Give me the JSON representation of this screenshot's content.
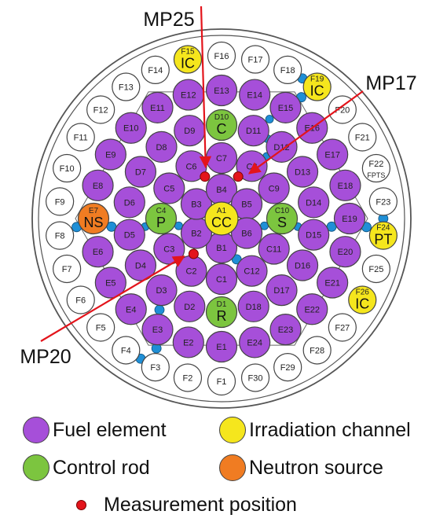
{
  "colors": {
    "fuel": "#a64fd9",
    "control": "#7cc53f",
    "irradiation": "#f5e61d",
    "neutron": "#f07c22",
    "empty": "#ffffff",
    "detector": "#1f8fd6",
    "measurement": "#e3141b",
    "arrow": "#e3141b"
  },
  "labels": {
    "fppts": "FPTS"
  },
  "arrows": [
    {
      "label": "MP25"
    },
    {
      "label": "MP17"
    },
    {
      "label": "MP20"
    }
  ],
  "rings": {
    "A": {
      "names": [
        "A1"
      ],
      "types": [
        "irradiation"
      ],
      "tags": [
        "CC"
      ]
    },
    "B": {
      "names": [
        "B1",
        "B2",
        "B3",
        "B4",
        "B5",
        "B6"
      ],
      "types": [
        "fuel",
        "fuel",
        "fuel",
        "fuel",
        "fuel",
        "fuel"
      ],
      "tags": [
        "",
        "",
        "",
        "",
        "",
        ""
      ]
    },
    "C": {
      "names": [
        "C1",
        "C2",
        "C3",
        "C4",
        "C5",
        "C6",
        "C7",
        "C8",
        "C9",
        "C10",
        "C11",
        "C12"
      ],
      "types": [
        "fuel",
        "fuel",
        "fuel",
        "control",
        "fuel",
        "fuel",
        "fuel",
        "fuel",
        "fuel",
        "control",
        "fuel",
        "fuel"
      ],
      "tags": [
        "",
        "",
        "",
        "P",
        "",
        "",
        "",
        "",
        "",
        "S",
        "",
        ""
      ]
    },
    "D": {
      "names": [
        "D1",
        "D2",
        "D3",
        "D4",
        "D5",
        "D6",
        "D7",
        "D8",
        "D9",
        "D10",
        "D11",
        "D12",
        "D13",
        "D14",
        "D15",
        "D16",
        "D17",
        "D18"
      ],
      "types": [
        "control",
        "fuel",
        "fuel",
        "fuel",
        "fuel",
        "fuel",
        "fuel",
        "fuel",
        "fuel",
        "control",
        "fuel",
        "fuel",
        "fuel",
        "fuel",
        "fuel",
        "fuel",
        "fuel",
        "fuel"
      ],
      "tags": [
        "R",
        "",
        "",
        "",
        "",
        "",
        "",
        "",
        "",
        "C",
        "",
        "",
        "",
        "",
        "",
        "",
        "",
        ""
      ]
    },
    "E": {
      "names": [
        "E1",
        "E2",
        "E3",
        "E4",
        "E5",
        "E6",
        "E7",
        "E8",
        "E9",
        "E10",
        "E11",
        "E12",
        "E13",
        "E14",
        "E15",
        "E16",
        "E17",
        "E18",
        "E19",
        "E20",
        "E21",
        "E22",
        "E23",
        "E24"
      ],
      "types": [
        "fuel",
        "fuel",
        "fuel",
        "fuel",
        "fuel",
        "fuel",
        "neutron",
        "fuel",
        "fuel",
        "fuel",
        "fuel",
        "fuel",
        "fuel",
        "fuel",
        "fuel",
        "fuel",
        "fuel",
        "fuel",
        "fuel",
        "fuel",
        "fuel",
        "fuel",
        "fuel",
        "fuel"
      ],
      "tags": [
        "",
        "",
        "",
        "",
        "",
        "",
        "NS",
        "",
        "",
        "",
        "",
        "",
        "",
        "",
        "",
        "",
        "",
        "",
        "",
        "",
        "",
        "",
        "",
        ""
      ]
    },
    "F": {
      "names": [
        "F1",
        "F2",
        "F3",
        "F4",
        "F5",
        "F6",
        "F7",
        "F8",
        "F9",
        "F10",
        "F11",
        "F12",
        "F13",
        "F14",
        "F15",
        "F16",
        "F17",
        "F18",
        "F19",
        "F20",
        "F21",
        "F22",
        "F23",
        "F24",
        "F25",
        "F26",
        "F27",
        "F28",
        "F29",
        "F30"
      ],
      "types": [
        "empty",
        "empty",
        "empty",
        "empty",
        "empty",
        "empty",
        "empty",
        "empty",
        "empty",
        "empty",
        "empty",
        "empty",
        "empty",
        "empty",
        "irradiation",
        "empty",
        "empty",
        "empty",
        "irradiation",
        "empty",
        "empty",
        "empty",
        "empty",
        "irradiation",
        "empty",
        "irradiation",
        "empty",
        "empty",
        "empty",
        "empty"
      ],
      "tags": [
        "",
        "",
        "",
        "",
        "",
        "",
        "",
        "",
        "",
        "",
        "",
        "",
        "",
        "",
        "IC",
        "",
        "",
        "",
        "IC",
        "",
        "",
        "FPTS",
        "",
        "PT",
        "",
        "IC",
        "",
        "",
        "",
        ""
      ]
    }
  },
  "legend": {
    "fuel": "Fuel element",
    "irradiation": "Irradiation channel",
    "control": "Control rod",
    "neutron": "Neutron source",
    "measurement": "Measurement position"
  }
}
